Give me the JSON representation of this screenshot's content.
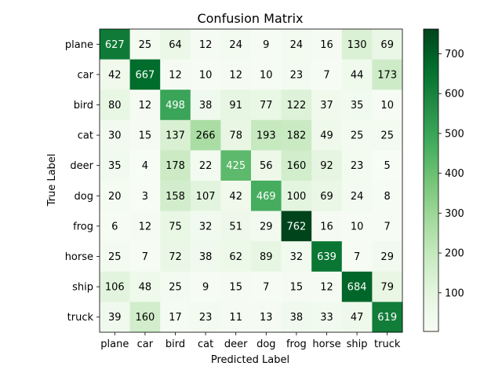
{
  "chart_data": {
    "type": "heatmap",
    "title": "Confusion Matrix",
    "xlabel": "Predicted Label",
    "ylabel": "True Label",
    "x_categories": [
      "plane",
      "car",
      "bird",
      "cat",
      "deer",
      "dog",
      "frog",
      "horse",
      "ship",
      "truck"
    ],
    "y_categories": [
      "plane",
      "car",
      "bird",
      "cat",
      "deer",
      "dog",
      "frog",
      "horse",
      "ship",
      "truck"
    ],
    "values": [
      [
        627,
        25,
        64,
        12,
        24,
        9,
        24,
        16,
        130,
        69
      ],
      [
        42,
        667,
        12,
        10,
        12,
        10,
        23,
        7,
        44,
        173
      ],
      [
        80,
        12,
        498,
        38,
        91,
        77,
        122,
        37,
        35,
        10
      ],
      [
        30,
        15,
        137,
        266,
        78,
        193,
        182,
        49,
        25,
        25
      ],
      [
        35,
        4,
        178,
        22,
        425,
        56,
        160,
        92,
        23,
        5
      ],
      [
        20,
        3,
        158,
        107,
        42,
        469,
        100,
        69,
        24,
        8
      ],
      [
        6,
        12,
        75,
        32,
        51,
        29,
        762,
        16,
        10,
        7
      ],
      [
        25,
        7,
        72,
        38,
        62,
        89,
        32,
        639,
        7,
        29
      ],
      [
        106,
        48,
        25,
        9,
        15,
        7,
        15,
        12,
        684,
        79
      ],
      [
        39,
        160,
        17,
        23,
        11,
        13,
        38,
        33,
        47,
        619
      ]
    ],
    "colormap": "Greens",
    "value_range": [
      3,
      762
    ],
    "colorbar_ticks": [
      100,
      200,
      300,
      400,
      500,
      600,
      700
    ],
    "annotation_threshold": 382.5,
    "annotation_colors": {
      "light": "#ffffff",
      "dark": "#000000"
    }
  }
}
